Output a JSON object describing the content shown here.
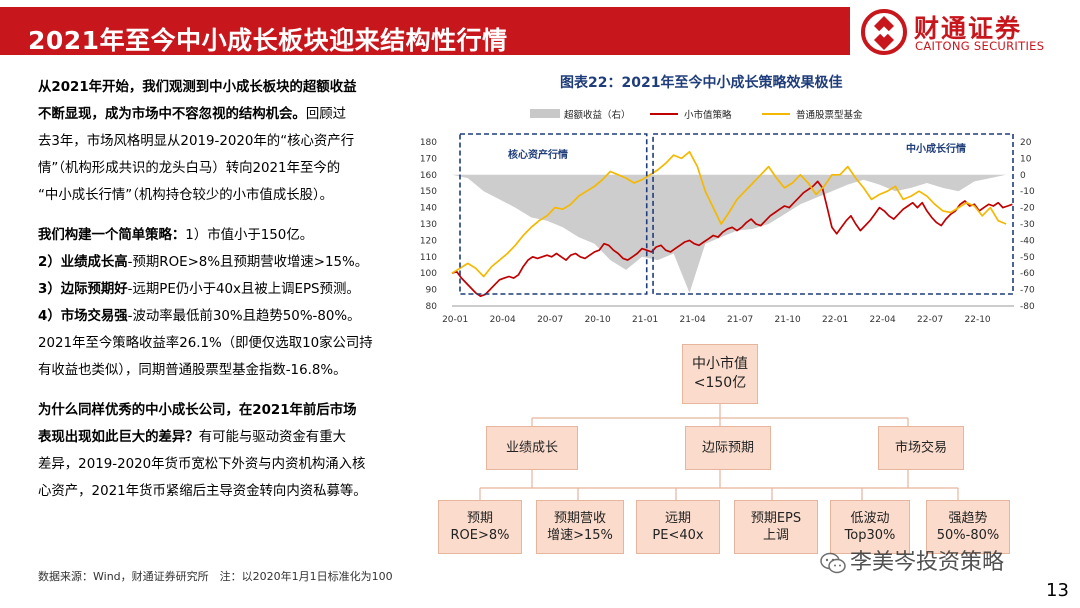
{
  "header": {
    "title": "2021年至今中小成长板块迎来结构性行情",
    "logo_cn": "财通证券",
    "logo_en": "CAITONG SECURITIES",
    "colors": {
      "brand_red": "#c8161d"
    }
  },
  "body_text": {
    "p1_bold": "从2021年开始，我们观测到中小成长板块的超额收益",
    "p2_bold": "不断显现，成为市场中不容忽视的结构机会。",
    "p2_rest": "回顾过",
    "p3": "去3年，市场风格明显从2019-2020年的“核心资产行",
    "p4": "情”（机构形成共识的龙头白马）转向2021年至今的",
    "p5": "“中小成长行情”（机构持仓较少的小市值成长股）。",
    "p6_bold": "我们构建一个简单策略：",
    "p6_rest": "1）市值小于150亿。",
    "p7_bold": "2）业绩成长高",
    "p7_rest": "-预期ROE>8%且预期营收增速>15%。",
    "p8_bold": "3）边际预期好",
    "p8_rest": "-远期PE仍小于40x且被上调EPS预测。",
    "p9_bold": "4）市场交易强",
    "p9_rest": "-波动率最低前30%且趋势50%-80%。",
    "p10": "2021年至今策略收益率26.1%（即便仅选取10家公司持",
    "p11": "有收益也类似），同期普通股票型基金指数-16.8%。",
    "p12_bold": "为什么同样优秀的中小成长公司，在2021年前后市场",
    "p13_bold": "表现出现如此巨大的差异？",
    "p13_rest": "有可能与驱动资金有重大",
    "p14": "差异，2019-2020年货币宽松下外资与内资机构涌入核",
    "p15": "心资产，2021年货币紧缩后主导资金转向内资私募等。"
  },
  "chart_title": "图表22：2021年至今中小成长策略效果极佳",
  "chart_data": {
    "type": "line",
    "legend": [
      "超额收益（右）",
      "小市值策略",
      "普通股票型基金"
    ],
    "legend_placement": "top",
    "colors": {
      "excess": "#c8c8c8",
      "small_cap": "#c00000",
      "fund": "#f5b800",
      "box": "#1f3d7a"
    },
    "x_ticks": [
      "20-01",
      "20-04",
      "20-07",
      "20-10",
      "21-01",
      "21-04",
      "21-07",
      "21-10",
      "22-01",
      "22-04",
      "22-07",
      "22-10"
    ],
    "y_left_ticks": [
      80,
      90,
      100,
      110,
      120,
      130,
      140,
      150,
      160,
      170,
      180
    ],
    "y_right_ticks": [
      20,
      10,
      0,
      -10,
      -20,
      -30,
      -40,
      -50,
      -60,
      -70,
      -80
    ],
    "ylim_left": [
      80,
      180
    ],
    "ylim_right": [
      -80,
      20
    ],
    "annotations": [
      "核心资产行情",
      "中小成长行情"
    ],
    "series": [
      {
        "name": "小市值策略",
        "axis": "left",
        "x": [
          0,
          0.3,
          0.6,
          0.9,
          1.2,
          1.5,
          1.8,
          2.1,
          2.4,
          2.7,
          3.0,
          3.3,
          3.6,
          3.9,
          4.2,
          4.5,
          4.8,
          5.1,
          5.4,
          5.7,
          6.0,
          6.3,
          6.6,
          6.9,
          7.2,
          7.5,
          7.8,
          8.1,
          8.4,
          8.7,
          9.0,
          9.3,
          9.6,
          9.9,
          10.2,
          10.5,
          10.8,
          11.1,
          11.4,
          11.7,
          12.0,
          12.3,
          12.6,
          12.9,
          13.2,
          13.5,
          13.8,
          14.1,
          14.4,
          14.7,
          15.0,
          15.3,
          15.6,
          15.9,
          16.2,
          16.5,
          16.8,
          17.1,
          17.4,
          17.7,
          18.0,
          18.3,
          18.6,
          18.9,
          19.2,
          19.5,
          19.8,
          20.1,
          20.4,
          20.7,
          21.0,
          21.3,
          21.6,
          21.9,
          22.2,
          22.5,
          22.8,
          23.1,
          23.4,
          23.7,
          24.0,
          24.3,
          24.6,
          24.9,
          25.2,
          25.5,
          25.8,
          26.1,
          26.4,
          26.7,
          27.0,
          27.3,
          27.6,
          27.9,
          28.2,
          28.5,
          28.8,
          29.1,
          29.4,
          29.7,
          30.0,
          30.3,
          30.6,
          30.9,
          31.2,
          31.5,
          31.8,
          32.1,
          32.4,
          32.7,
          33.0,
          33.3,
          33.6,
          33.9,
          34.2,
          34.5,
          34.8,
          35.1,
          35.4
        ],
        "values": [
          100,
          101,
          97,
          94,
          91,
          88,
          86,
          87,
          90,
          93,
          96,
          97,
          98,
          97,
          99,
          104,
          108,
          110,
          109,
          110,
          111,
          110,
          112,
          110,
          108,
          111,
          112,
          110,
          109,
          111,
          113,
          114,
          118,
          117,
          114,
          112,
          109,
          108,
          110,
          112,
          115,
          114,
          113,
          116,
          117,
          114,
          113,
          115,
          117,
          119,
          120,
          118,
          117,
          119,
          121,
          123,
          122,
          125,
          127,
          128,
          126,
          128,
          131,
          133,
          130,
          129,
          132,
          135,
          137,
          139,
          141,
          140,
          143,
          146,
          149,
          151,
          153,
          156,
          152,
          140,
          128,
          124,
          128,
          132,
          135,
          130,
          126,
          129,
          132,
          136,
          140,
          138,
          135,
          133,
          136,
          139,
          141,
          143,
          140,
          143,
          138,
          134,
          131,
          129,
          133,
          136,
          138,
          142,
          144,
          141,
          142,
          138,
          140,
          142,
          141,
          143,
          140,
          141,
          142
        ]
      },
      {
        "name": "普通股票型基金",
        "axis": "left",
        "x": [
          0,
          0.5,
          1.0,
          1.5,
          2.0,
          2.5,
          3.0,
          3.5,
          4.0,
          4.5,
          5.0,
          5.5,
          6.0,
          6.5,
          7.0,
          7.5,
          8.0,
          8.5,
          9.0,
          9.5,
          10.0,
          10.5,
          11.0,
          11.5,
          12.0,
          12.5,
          13.0,
          13.5,
          14.0,
          14.5,
          15.0,
          15.5,
          16.0,
          16.5,
          17.0,
          17.5,
          18.0,
          18.5,
          19.0,
          19.5,
          20.0,
          20.5,
          21.0,
          21.5,
          22.0,
          22.5,
          23.0,
          23.5,
          24.0,
          24.5,
          25.0,
          25.5,
          26.0,
          26.5,
          27.0,
          27.5,
          28.0,
          28.5,
          29.0,
          29.5,
          30.0,
          30.5,
          31.0,
          31.5,
          32.0,
          32.5,
          33.0,
          33.5,
          34.0,
          34.5,
          35.0
        ],
        "values": [
          100,
          103,
          106,
          103,
          98,
          104,
          108,
          112,
          117,
          123,
          128,
          132,
          135,
          140,
          139,
          142,
          147,
          150,
          153,
          157,
          162,
          160,
          158,
          155,
          157,
          160,
          163,
          167,
          172,
          170,
          174,
          165,
          150,
          140,
          130,
          137,
          145,
          150,
          155,
          160,
          165,
          158,
          152,
          155,
          160,
          155,
          148,
          153,
          160,
          160,
          165,
          158,
          152,
          145,
          148,
          150,
          153,
          145,
          147,
          150,
          147,
          142,
          138,
          137,
          140,
          143,
          141,
          135,
          140,
          132,
          130
        ]
      },
      {
        "name": "超额收益（右）",
        "axis": "right",
        "x": [
          0,
          1,
          2,
          3,
          4,
          5,
          6,
          7,
          8,
          9,
          10,
          11,
          12,
          13,
          14,
          15,
          16,
          17,
          18,
          19,
          20,
          21,
          22,
          23,
          24,
          25,
          26,
          27,
          28,
          29,
          30,
          31,
          32,
          33,
          34,
          35
        ],
        "values": [
          0,
          -2,
          -10,
          -15,
          -20,
          -26,
          -28,
          -32,
          -38,
          -42,
          -52,
          -58,
          -50,
          -52,
          -48,
          -72,
          -42,
          -38,
          -34,
          -33,
          -30,
          -24,
          -18,
          -14,
          -10,
          -6,
          -3,
          -6,
          -10,
          -8,
          -5,
          -8,
          -10,
          -4,
          -2,
          0
        ]
      }
    ]
  },
  "diagram": {
    "root": "中小市值\n<150亿",
    "mid": [
      "业绩成长",
      "边际预期",
      "市场交易"
    ],
    "leaves": [
      "预期\nROE>8%",
      "预期营收\n增速>15%",
      "远期\nPE<40x",
      "预期EPS\n上调",
      "低波动\nTop30%",
      "强趋势\n50%-80%"
    ]
  },
  "source": "数据来源：Wind，财通证券研究所　注：以2020年1月1日标准化为100",
  "watermark": "李美岑投资策略",
  "page_number": "13"
}
